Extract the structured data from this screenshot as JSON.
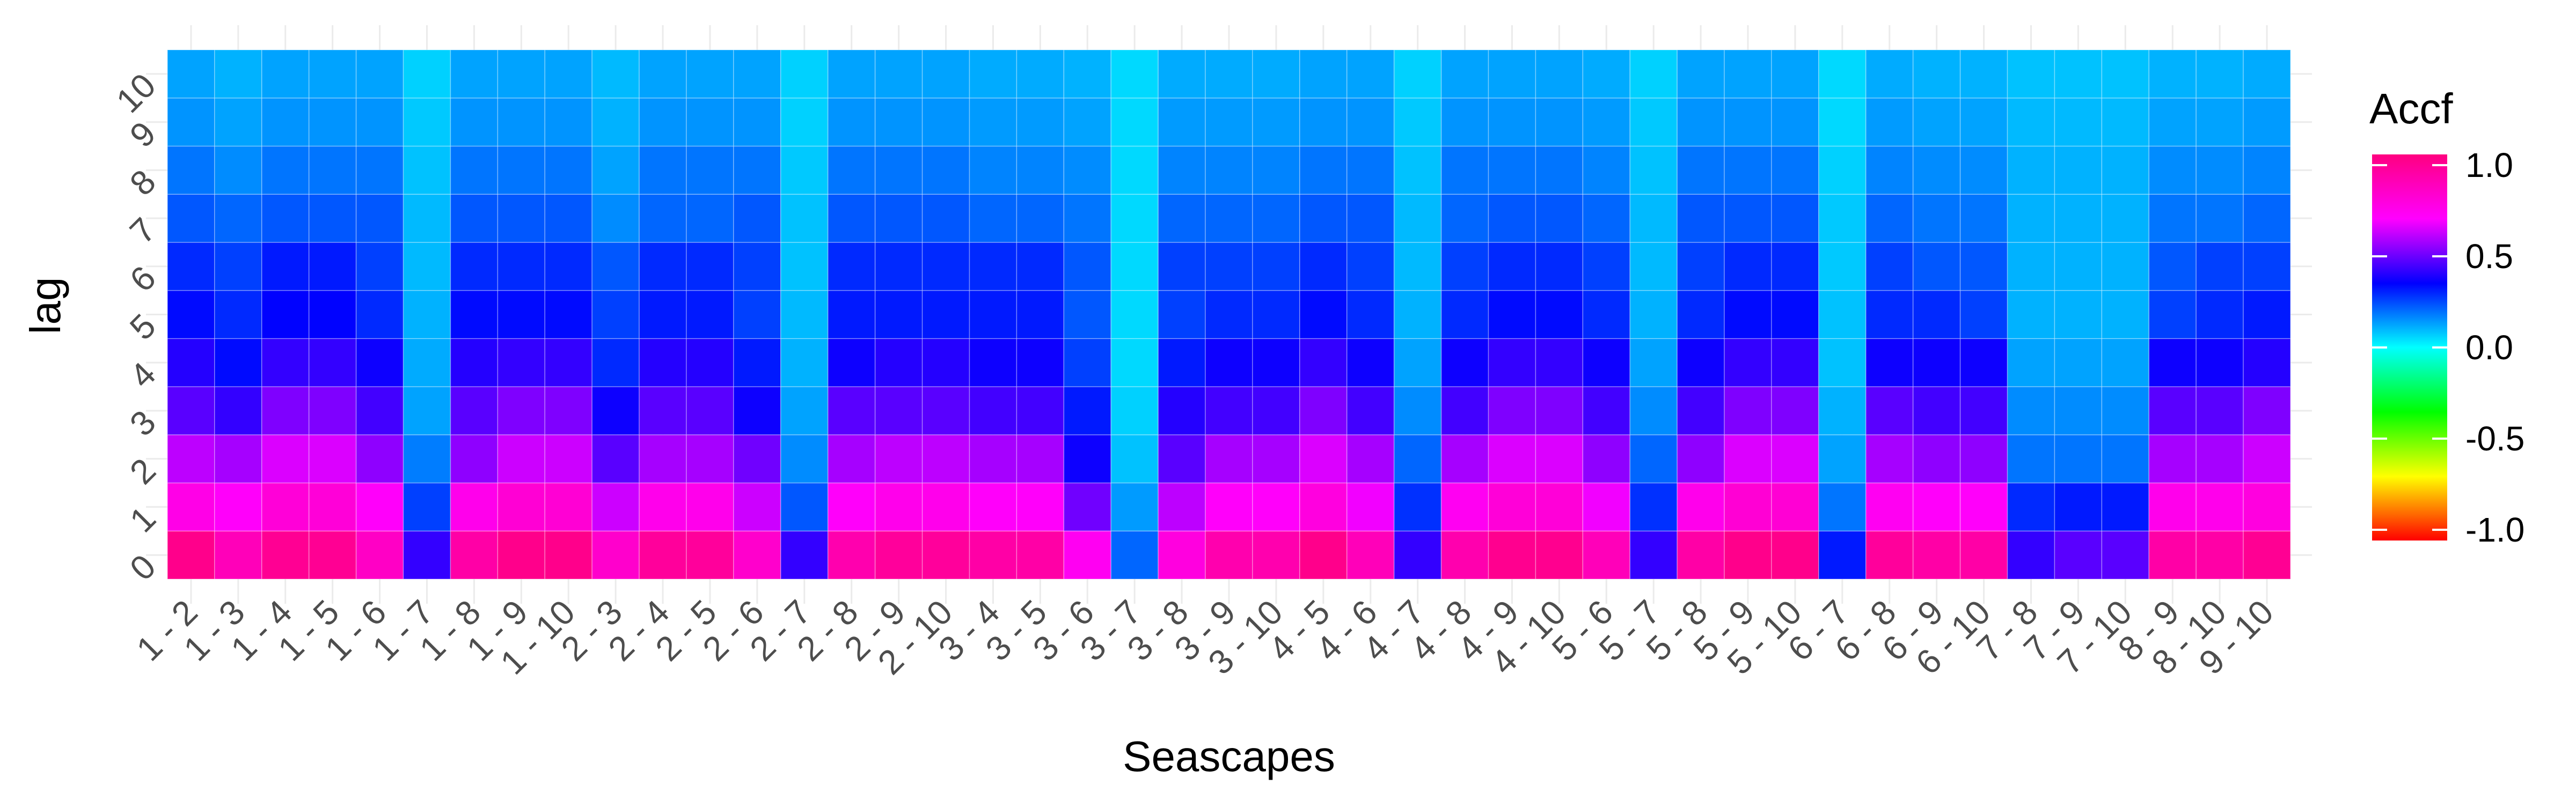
{
  "chart_data": {
    "type": "heatmap",
    "xlabel": "Seascapes",
    "ylabel": "lag",
    "legend": {
      "title": "Accf",
      "ticks": [
        "1.0",
        "0.5",
        "0.0",
        "-0.5",
        "-1.0"
      ],
      "tick_values": [
        1.0,
        0.5,
        0.0,
        -0.5,
        -1.0
      ],
      "range": [
        -1.0,
        1.0
      ],
      "placement": "right"
    },
    "grid": true,
    "x_categories": [
      "1 - 2",
      "1 - 3",
      "1 - 4",
      "1 - 5",
      "1 - 6",
      "1 - 7",
      "1 - 8",
      "1 - 9",
      "1 - 10",
      "2 - 3",
      "2 - 4",
      "2 - 5",
      "2 - 6",
      "2 - 7",
      "2 - 8",
      "2 - 9",
      "2 - 10",
      "3 - 4",
      "3 - 5",
      "3 - 6",
      "3 - 7",
      "3 - 8",
      "3 - 9",
      "3 - 10",
      "4 - 5",
      "4 - 6",
      "4 - 7",
      "4 - 8",
      "4 - 9",
      "4 - 10",
      "5 - 6",
      "5 - 7",
      "5 - 8",
      "5 - 9",
      "5 - 10",
      "6 - 7",
      "6 - 8",
      "6 - 9",
      "6 - 10",
      "7 - 8",
      "7 - 9",
      "7 - 10",
      "8 - 9",
      "8 - 10",
      "9 - 10"
    ],
    "y_categories": [
      "0",
      "1",
      "2",
      "3",
      "4",
      "5",
      "6",
      "7",
      "8",
      "9",
      "10"
    ],
    "values": [
      [
        0.97,
        0.85,
        0.95,
        0.95,
        0.82,
        0.4,
        0.9,
        0.97,
        0.97,
        0.8,
        0.93,
        0.93,
        0.8,
        0.4,
        0.88,
        0.93,
        0.93,
        0.9,
        0.9,
        0.7,
        0.2,
        0.75,
        0.88,
        0.88,
        0.97,
        0.85,
        0.4,
        0.88,
        0.96,
        0.96,
        0.85,
        0.4,
        0.9,
        0.97,
        0.97,
        0.3,
        0.93,
        0.9,
        0.9,
        0.4,
        0.45,
        0.45,
        0.9,
        0.9,
        0.95
      ],
      [
        0.73,
        0.68,
        0.77,
        0.77,
        0.68,
        0.25,
        0.72,
        0.78,
        0.78,
        0.6,
        0.72,
        0.72,
        0.6,
        0.22,
        0.68,
        0.72,
        0.72,
        0.68,
        0.68,
        0.48,
        0.13,
        0.58,
        0.68,
        0.68,
        0.75,
        0.65,
        0.27,
        0.7,
        0.77,
        0.77,
        0.65,
        0.27,
        0.72,
        0.78,
        0.78,
        0.18,
        0.7,
        0.68,
        0.68,
        0.28,
        0.3,
        0.3,
        0.72,
        0.72,
        0.75
      ],
      [
        0.58,
        0.55,
        0.62,
        0.62,
        0.52,
        0.17,
        0.52,
        0.6,
        0.6,
        0.45,
        0.55,
        0.55,
        0.48,
        0.15,
        0.55,
        0.58,
        0.58,
        0.55,
        0.55,
        0.35,
        0.08,
        0.45,
        0.55,
        0.55,
        0.62,
        0.55,
        0.2,
        0.55,
        0.62,
        0.62,
        0.52,
        0.2,
        0.52,
        0.62,
        0.62,
        0.12,
        0.55,
        0.52,
        0.52,
        0.18,
        0.18,
        0.18,
        0.55,
        0.55,
        0.6
      ],
      [
        0.45,
        0.4,
        0.5,
        0.5,
        0.42,
        0.12,
        0.45,
        0.5,
        0.5,
        0.35,
        0.45,
        0.45,
        0.35,
        0.12,
        0.45,
        0.45,
        0.45,
        0.42,
        0.42,
        0.3,
        0.06,
        0.38,
        0.42,
        0.42,
        0.5,
        0.42,
        0.15,
        0.42,
        0.5,
        0.5,
        0.42,
        0.15,
        0.42,
        0.5,
        0.5,
        0.1,
        0.45,
        0.42,
        0.42,
        0.15,
        0.15,
        0.15,
        0.45,
        0.45,
        0.5
      ],
      [
        0.38,
        0.32,
        0.4,
        0.4,
        0.35,
        0.11,
        0.38,
        0.4,
        0.4,
        0.28,
        0.38,
        0.38,
        0.3,
        0.1,
        0.35,
        0.38,
        0.38,
        0.35,
        0.35,
        0.25,
        0.05,
        0.3,
        0.35,
        0.35,
        0.4,
        0.35,
        0.12,
        0.35,
        0.4,
        0.4,
        0.35,
        0.12,
        0.35,
        0.4,
        0.4,
        0.08,
        0.35,
        0.35,
        0.35,
        0.12,
        0.12,
        0.12,
        0.35,
        0.35,
        0.38
      ],
      [
        0.32,
        0.28,
        0.33,
        0.33,
        0.28,
        0.1,
        0.32,
        0.32,
        0.32,
        0.25,
        0.3,
        0.3,
        0.25,
        0.09,
        0.3,
        0.3,
        0.3,
        0.3,
        0.3,
        0.22,
        0.05,
        0.25,
        0.28,
        0.28,
        0.32,
        0.28,
        0.1,
        0.28,
        0.32,
        0.32,
        0.28,
        0.1,
        0.28,
        0.32,
        0.32,
        0.08,
        0.28,
        0.28,
        0.25,
        0.1,
        0.1,
        0.1,
        0.25,
        0.28,
        0.3
      ],
      [
        0.28,
        0.25,
        0.3,
        0.3,
        0.25,
        0.09,
        0.28,
        0.28,
        0.28,
        0.22,
        0.28,
        0.28,
        0.25,
        0.08,
        0.28,
        0.28,
        0.28,
        0.28,
        0.28,
        0.22,
        0.05,
        0.25,
        0.25,
        0.25,
        0.28,
        0.25,
        0.09,
        0.25,
        0.28,
        0.28,
        0.25,
        0.09,
        0.25,
        0.28,
        0.28,
        0.07,
        0.25,
        0.22,
        0.22,
        0.1,
        0.1,
        0.1,
        0.22,
        0.25,
        0.25
      ],
      [
        0.22,
        0.2,
        0.22,
        0.22,
        0.22,
        0.09,
        0.22,
        0.22,
        0.22,
        0.15,
        0.2,
        0.2,
        0.22,
        0.08,
        0.22,
        0.22,
        0.22,
        0.2,
        0.2,
        0.18,
        0.05,
        0.2,
        0.2,
        0.2,
        0.22,
        0.22,
        0.09,
        0.2,
        0.22,
        0.22,
        0.2,
        0.09,
        0.22,
        0.22,
        0.22,
        0.07,
        0.2,
        0.18,
        0.18,
        0.1,
        0.1,
        0.1,
        0.18,
        0.18,
        0.2
      ],
      [
        0.18,
        0.15,
        0.18,
        0.18,
        0.18,
        0.08,
        0.18,
        0.18,
        0.18,
        0.12,
        0.18,
        0.18,
        0.18,
        0.07,
        0.18,
        0.18,
        0.18,
        0.16,
        0.16,
        0.15,
        0.05,
        0.16,
        0.16,
        0.16,
        0.18,
        0.18,
        0.08,
        0.18,
        0.18,
        0.18,
        0.16,
        0.08,
        0.18,
        0.18,
        0.18,
        0.06,
        0.16,
        0.15,
        0.15,
        0.1,
        0.1,
        0.1,
        0.15,
        0.15,
        0.16
      ],
      [
        0.14,
        0.12,
        0.14,
        0.14,
        0.14,
        0.07,
        0.14,
        0.14,
        0.14,
        0.1,
        0.14,
        0.14,
        0.14,
        0.06,
        0.14,
        0.14,
        0.14,
        0.13,
        0.13,
        0.12,
        0.05,
        0.13,
        0.13,
        0.13,
        0.14,
        0.14,
        0.07,
        0.14,
        0.14,
        0.14,
        0.13,
        0.07,
        0.14,
        0.14,
        0.14,
        0.05,
        0.13,
        0.12,
        0.12,
        0.09,
        0.09,
        0.09,
        0.12,
        0.12,
        0.13
      ],
      [
        0.12,
        0.1,
        0.12,
        0.12,
        0.12,
        0.06,
        0.12,
        0.12,
        0.12,
        0.09,
        0.12,
        0.12,
        0.12,
        0.06,
        0.12,
        0.12,
        0.12,
        0.11,
        0.11,
        0.1,
        0.05,
        0.11,
        0.11,
        0.11,
        0.12,
        0.12,
        0.06,
        0.12,
        0.12,
        0.12,
        0.11,
        0.06,
        0.12,
        0.12,
        0.12,
        0.05,
        0.11,
        0.1,
        0.1,
        0.08,
        0.08,
        0.08,
        0.1,
        0.1,
        0.11
      ]
    ]
  }
}
